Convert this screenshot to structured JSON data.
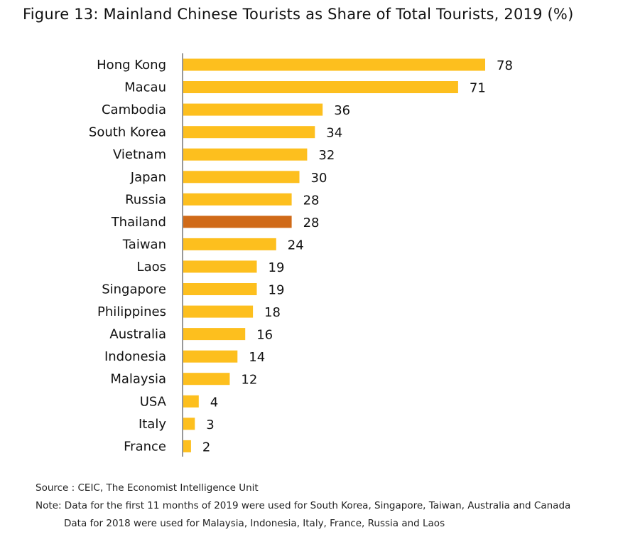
{
  "title": "Figure 13: Mainland Chinese Tourists as Share of Total Tourists, 2019 (%)",
  "chart_data": {
    "type": "bar",
    "orientation": "horizontal",
    "categories": [
      "Hong Kong",
      "Macau",
      "Cambodia",
      "South Korea",
      "Vietnam",
      "Japan",
      "Russia",
      "Thailand",
      "Taiwan",
      "Laos",
      "Singapore",
      "Philippines",
      "Australia",
      "Indonesia",
      "Malaysia",
      "USA",
      "Italy",
      "France"
    ],
    "values": [
      78,
      71,
      36,
      34,
      32,
      30,
      28,
      28,
      24,
      19,
      19,
      18,
      16,
      14,
      12,
      4,
      3,
      2
    ],
    "bar_color": "#FDBF1E",
    "highlight_category": "Thailand",
    "highlight_color": "#D06A18",
    "xlim": [
      0,
      80
    ],
    "grid": false,
    "data_labels": true
  },
  "source": "Source : CEIC, The Economist Intelligence Unit",
  "note_line1": "Note: Data for the first 11 months of 2019 were used for South Korea,  Singapore, Taiwan, Australia and Canada",
  "note_line2": "Data for 2018 were used for Malaysia, Indonesia, Italy, France, Russia and  Laos"
}
